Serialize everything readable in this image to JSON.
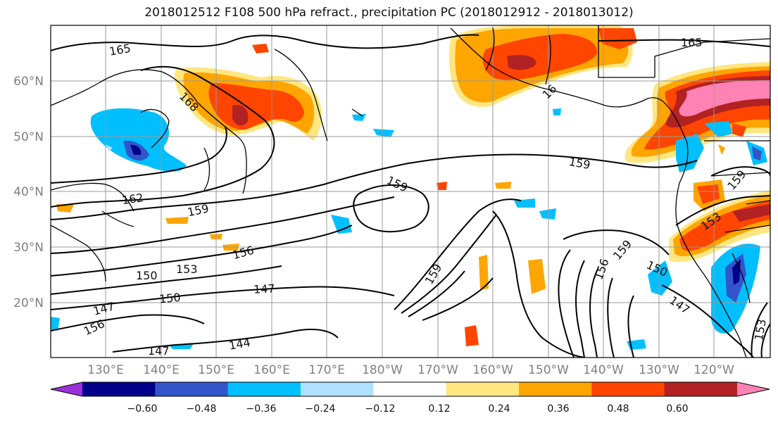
{
  "title": "2018012512 F108 500 hPa refract., precipitation PC (2018012912 - 2018013012)",
  "latitude_labels": [
    "20°N",
    "30°N",
    "40°N",
    "50°N",
    "60°N"
  ],
  "longitude_labels": [
    "130°E",
    "140°E",
    "150°E",
    "160°E",
    "170°E",
    "180°W",
    "170°W",
    "160°W",
    "150°W",
    "140°W",
    "130°W",
    "120°W"
  ],
  "contour_labels": [
    {
      "text": "165"
    },
    {
      "text": "168"
    },
    {
      "text": "165"
    },
    {
      "text": "16"
    },
    {
      "text": "162"
    },
    {
      "text": "159"
    },
    {
      "text": "159"
    },
    {
      "text": "159"
    },
    {
      "text": "159"
    },
    {
      "text": "156"
    },
    {
      "text": "153"
    },
    {
      "text": "150"
    },
    {
      "text": "147"
    },
    {
      "text": "150"
    },
    {
      "text": "147"
    },
    {
      "text": "144"
    },
    {
      "text": "147"
    },
    {
      "text": "153"
    },
    {
      "text": "150"
    },
    {
      "text": "147"
    },
    {
      "text": "156"
    },
    {
      "text": "159"
    },
    {
      "text": "159"
    },
    {
      "text": "153"
    },
    {
      "text": "156"
    }
  ],
  "colorbar": {
    "ticks": [
      "−0.60",
      "−0.48",
      "−0.36",
      "−0.24",
      "−0.12",
      "0.12",
      "0.24",
      "0.36",
      "0.48",
      "0.60"
    ],
    "colors": [
      "#9b30d9",
      "#00008b",
      "#3355cc",
      "#00bfff",
      "#b0e0ff",
      "#ffffff",
      "#ffe680",
      "#ffa500",
      "#ff4500",
      "#b22222",
      "#ff82b4"
    ]
  },
  "fill_colors": {
    "yellow": "#ffe680",
    "orange": "#ffa500",
    "redorange": "#ff4500",
    "darkred": "#b22222",
    "pink": "#ff82b4",
    "cyan": "#00bfff",
    "lightblue": "#b0e0ff",
    "blue": "#3355cc",
    "navy": "#00008b"
  }
}
